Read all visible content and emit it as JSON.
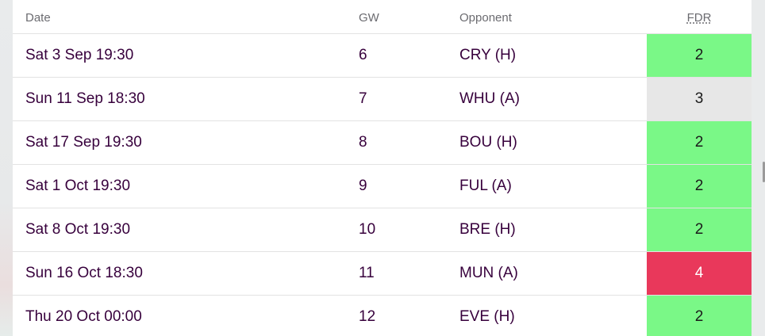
{
  "table": {
    "headers": {
      "date": "Date",
      "gw": "GW",
      "opponent": "Opponent",
      "fdr": "FDR"
    },
    "rows": [
      {
        "date": "Sat 3 Sep 19:30",
        "gw": "6",
        "opponent": "CRY (H)",
        "fdr": "2"
      },
      {
        "date": "Sun 11 Sep 18:30",
        "gw": "7",
        "opponent": "WHU (A)",
        "fdr": "3"
      },
      {
        "date": "Sat 17 Sep 19:30",
        "gw": "8",
        "opponent": "BOU (H)",
        "fdr": "2"
      },
      {
        "date": "Sat 1 Oct 19:30",
        "gw": "9",
        "opponent": "FUL (A)",
        "fdr": "2"
      },
      {
        "date": "Sat 8 Oct 19:30",
        "gw": "10",
        "opponent": "BRE (H)",
        "fdr": "2"
      },
      {
        "date": "Sun 16 Oct 18:30",
        "gw": "11",
        "opponent": "MUN (A)",
        "fdr": "4"
      },
      {
        "date": "Thu 20 Oct 00:00",
        "gw": "12",
        "opponent": "EVE (H)",
        "fdr": "2"
      }
    ]
  },
  "colors": {
    "text": "#37003c",
    "fdr_2": "#7af887",
    "fdr_3": "#e7e7e7",
    "fdr_4": "#e9385b"
  }
}
